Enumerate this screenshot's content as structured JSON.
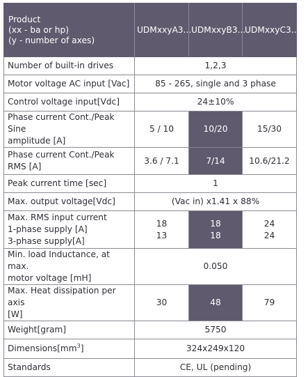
{
  "header": {
    "product_lines": [
      "Product",
      "(xx - ba or hp)",
      "(y - number of axes)"
    ],
    "columns": [
      "UDMxxyA3...",
      "UDMxxyB3...",
      "UDMxxyC3..."
    ]
  },
  "rows": {
    "drives": {
      "label": "Number of built-in drives",
      "value": "1,2,3"
    },
    "motor_voltage": {
      "label": "Motor voltage AC input [Vac]",
      "value": "85 - 265, single and 3 phase"
    },
    "control_voltage": {
      "label": "Control voltage input[Vdc]",
      "value": "24±10%"
    },
    "phase_sine": {
      "label_lines": [
        "Phase current Cont./Peak Sine",
        "amplitude [A]"
      ],
      "values": [
        "5 / 10",
        "10/20",
        "15/30"
      ]
    },
    "phase_rms": {
      "label_lines": [
        "Phase current Cont./Peak",
        "RMS [A]"
      ],
      "values": [
        "3.6 / 7.1",
        "7/14",
        "10.6/21.2"
      ]
    },
    "peak_time": {
      "label": "Peak current time [sec]",
      "value": "1"
    },
    "output_voltage": {
      "label": "Max. output voltage[Vdc]",
      "value": "(Vac in) x1.41 x 88%"
    },
    "rms_input": {
      "label_lines": [
        "Max. RMS input current",
        "1-phase supply [A]",
        "3-phase supply[A]"
      ],
      "values": [
        [
          "18",
          "13"
        ],
        [
          "18",
          "18"
        ],
        [
          "24",
          "24"
        ]
      ]
    },
    "inductance": {
      "label_lines": [
        "Min. load Inductance, at max.",
        "motor voltage [mH]"
      ],
      "value": "0.050"
    },
    "heat": {
      "label_lines": [
        "Max. Heat dissipation per axis",
        "[W]"
      ],
      "values": [
        "30",
        "48",
        "79"
      ]
    },
    "weight": {
      "label": "Weight[gram]",
      "value": "5750"
    },
    "dimensions": {
      "label": "Dimensions[mm",
      "label_sup": "3",
      "label_end": "]",
      "value": "324x249x120"
    },
    "standards": {
      "label": "Standards",
      "value": "CE, UL (pending)"
    }
  },
  "colors": {
    "header_bg": "#5f5a6e",
    "highlight_bg": "#5f5a6e",
    "border": "#8a8a92",
    "text": "#2e2e36"
  }
}
